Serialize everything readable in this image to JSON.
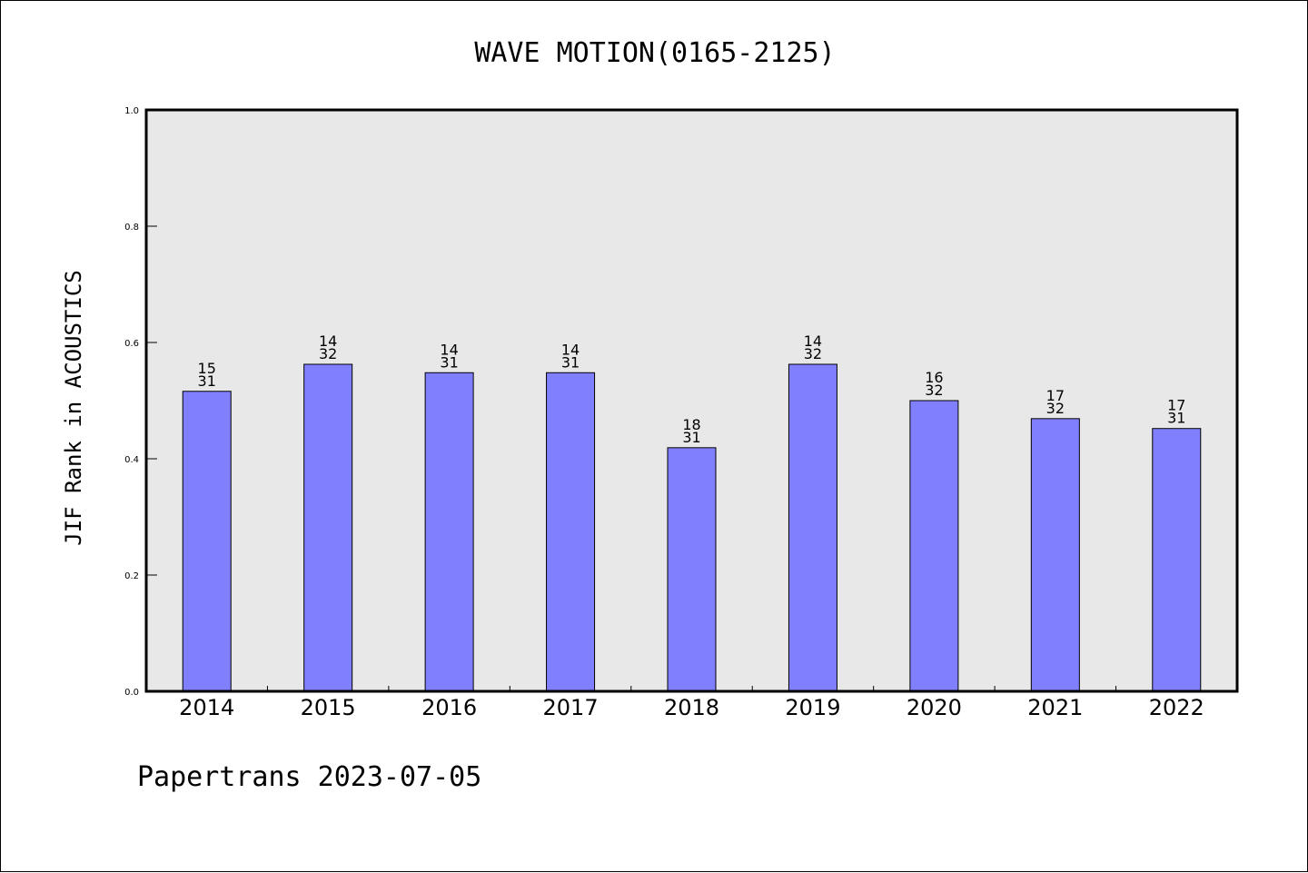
{
  "chart_data": {
    "type": "bar",
    "title": "WAVE MOTION(0165-2125)",
    "ylabel": "JIF Rank in ACOUSTICS",
    "xlabel": "",
    "categories": [
      "2014",
      "2015",
      "2016",
      "2017",
      "2018",
      "2019",
      "2020",
      "2021",
      "2022"
    ],
    "values": [
      0.516,
      0.5625,
      0.548,
      0.548,
      0.419,
      0.5625,
      0.5,
      0.469,
      0.452
    ],
    "bar_labels": [
      [
        "15",
        "31"
      ],
      [
        "14",
        "32"
      ],
      [
        "14",
        "31"
      ],
      [
        "14",
        "31"
      ],
      [
        "18",
        "31"
      ],
      [
        "14",
        "32"
      ],
      [
        "16",
        "32"
      ],
      [
        "17",
        "32"
      ],
      [
        "17",
        "31"
      ]
    ],
    "ylim": [
      0,
      1.0
    ],
    "yticks": [
      "0.0",
      "0.2",
      "0.4",
      "0.6",
      "0.8",
      "1.0"
    ],
    "grid": false,
    "colors": {
      "bar": "#8080ff",
      "plot_background": "#e8e8e8"
    }
  },
  "footer": "Papertrans 2023-07-05"
}
